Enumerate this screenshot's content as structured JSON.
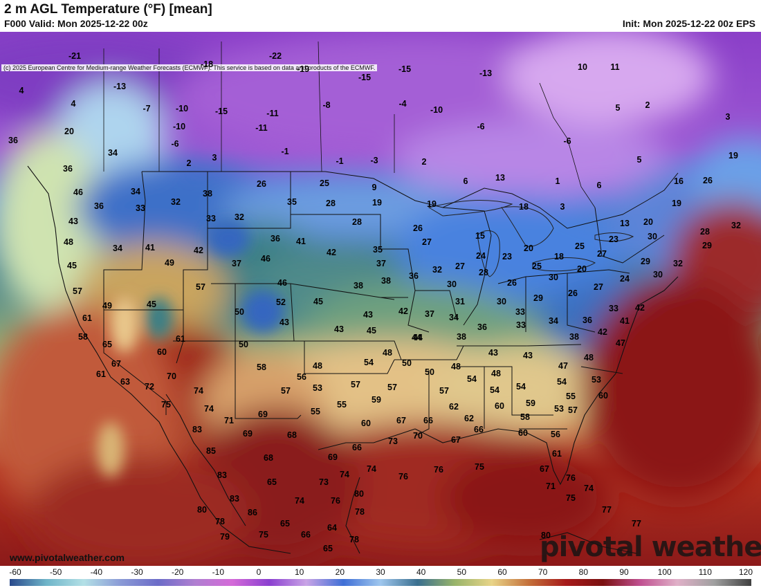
{
  "header": {
    "title": "2 m AGL Temperature (°F) [mean]",
    "valid": "F000 Valid: Mon 2025-12-22 00z",
    "init": "Init: Mon 2025-12-22 00z EPS"
  },
  "copyright": "(c) 2025 European Centre for Medium-range Weather Forecasts (ECMWF). This service is based on data and products of the ECMWF.",
  "footer": {
    "url": "www.pivotalweather.com",
    "brand": "pivotal weather"
  },
  "colorbar": {
    "ticks": [
      "-60",
      "-50",
      "-40",
      "-30",
      "-20",
      "-10",
      "0",
      "10",
      "20",
      "30",
      "40",
      "50",
      "60",
      "70",
      "80",
      "90",
      "100",
      "110",
      "120"
    ],
    "min": -60,
    "max": 120,
    "colors": [
      "#2a4a8c",
      "#6fb5c9",
      "#b3e0e6",
      "#8a9ad6",
      "#6c6cc8",
      "#b07fd1",
      "#d46ad8",
      "#8b3fd0",
      "#c9a4e6",
      "#3f6fd6",
      "#9fc7ee",
      "#3a6f8f",
      "#98b46a",
      "#e8d488",
      "#c4703a",
      "#a61a1a",
      "#7a1010",
      "#c05090",
      "#e0b0c8",
      "#a0a0a0",
      "#404040"
    ]
  },
  "map_values": [
    {
      "v": "-21"
    },
    {
      "v": "-22"
    },
    {
      "v": "-18"
    },
    {
      "v": "-19"
    },
    {
      "v": "-15"
    },
    {
      "v": "-15"
    },
    {
      "v": "-13"
    },
    {
      "v": "-13"
    },
    {
      "v": "10"
    },
    {
      "v": "11"
    },
    {
      "v": "4"
    },
    {
      "v": "4"
    },
    {
      "v": "-7"
    },
    {
      "v": "-10"
    },
    {
      "v": "-15"
    },
    {
      "v": "-11"
    },
    {
      "v": "-8"
    },
    {
      "v": "-4"
    },
    {
      "v": "-10"
    },
    {
      "v": "5"
    },
    {
      "v": "2"
    },
    {
      "v": "3"
    },
    {
      "v": "20"
    },
    {
      "v": "-10"
    },
    {
      "v": "-11"
    },
    {
      "v": "-6"
    },
    {
      "v": "-6"
    },
    {
      "v": "36"
    },
    {
      "v": "-6"
    },
    {
      "v": "34"
    },
    {
      "v": "2"
    },
    {
      "v": "3"
    },
    {
      "v": "-1"
    },
    {
      "v": "-1"
    },
    {
      "v": "-3"
    },
    {
      "v": "2"
    },
    {
      "v": "19"
    },
    {
      "v": "5"
    },
    {
      "v": "36"
    },
    {
      "v": "26"
    },
    {
      "v": "25"
    },
    {
      "v": "9"
    },
    {
      "v": "6"
    },
    {
      "v": "13"
    },
    {
      "v": "1"
    },
    {
      "v": "6"
    },
    {
      "v": "16"
    },
    {
      "v": "26"
    },
    {
      "v": "46"
    },
    {
      "v": "34"
    },
    {
      "v": "38"
    },
    {
      "v": "35"
    },
    {
      "v": "28"
    },
    {
      "v": "19"
    },
    {
      "v": "19"
    },
    {
      "v": "18"
    },
    {
      "v": "3"
    },
    {
      "v": "19"
    },
    {
      "v": "36"
    },
    {
      "v": "33"
    },
    {
      "v": "32"
    },
    {
      "v": "33"
    },
    {
      "v": "32"
    },
    {
      "v": "28"
    },
    {
      "v": "13"
    },
    {
      "v": "20"
    },
    {
      "v": "43"
    },
    {
      "v": "26"
    },
    {
      "v": "28"
    },
    {
      "v": "32"
    },
    {
      "v": "48"
    },
    {
      "v": "34"
    },
    {
      "v": "41"
    },
    {
      "v": "42"
    },
    {
      "v": "36"
    },
    {
      "v": "41"
    },
    {
      "v": "42"
    },
    {
      "v": "35"
    },
    {
      "v": "27"
    },
    {
      "v": "15"
    },
    {
      "v": "20"
    },
    {
      "v": "25"
    },
    {
      "v": "23"
    },
    {
      "v": "30"
    },
    {
      "v": "29"
    },
    {
      "v": "45"
    },
    {
      "v": "49"
    },
    {
      "v": "37"
    },
    {
      "v": "46"
    },
    {
      "v": "37"
    },
    {
      "v": "32"
    },
    {
      "v": "27"
    },
    {
      "v": "24"
    },
    {
      "v": "23"
    },
    {
      "v": "18"
    },
    {
      "v": "27"
    },
    {
      "v": "29"
    },
    {
      "v": "32"
    },
    {
      "v": "57"
    },
    {
      "v": "57"
    },
    {
      "v": "46"
    },
    {
      "v": "38"
    },
    {
      "v": "38"
    },
    {
      "v": "36"
    },
    {
      "v": "30"
    },
    {
      "v": "28"
    },
    {
      "v": "26"
    },
    {
      "v": "25"
    },
    {
      "v": "20"
    },
    {
      "v": "30"
    },
    {
      "v": "24"
    },
    {
      "v": "30"
    },
    {
      "v": "49"
    },
    {
      "v": "45"
    },
    {
      "v": "52"
    },
    {
      "v": "45"
    },
    {
      "v": "31"
    },
    {
      "v": "30"
    },
    {
      "v": "29"
    },
    {
      "v": "26"
    },
    {
      "v": "27"
    },
    {
      "v": "33"
    },
    {
      "v": "61"
    },
    {
      "v": "50"
    },
    {
      "v": "42"
    },
    {
      "v": "43"
    },
    {
      "v": "37"
    },
    {
      "v": "34"
    },
    {
      "v": "33"
    },
    {
      "v": "34"
    },
    {
      "v": "36"
    },
    {
      "v": "42"
    },
    {
      "v": "58"
    },
    {
      "v": "43"
    },
    {
      "v": "43"
    },
    {
      "v": "45"
    },
    {
      "v": "36"
    },
    {
      "v": "33"
    },
    {
      "v": "41"
    },
    {
      "v": "65"
    },
    {
      "v": "61"
    },
    {
      "v": "50"
    },
    {
      "v": "44"
    },
    {
      "v": "38"
    },
    {
      "v": "38"
    },
    {
      "v": "42"
    },
    {
      "v": "47"
    },
    {
      "v": "67"
    },
    {
      "v": "60"
    },
    {
      "v": "48"
    },
    {
      "v": "43"
    },
    {
      "v": "43"
    },
    {
      "v": "48"
    },
    {
      "v": "44"
    },
    {
      "v": "58"
    },
    {
      "v": "50"
    },
    {
      "v": "54"
    },
    {
      "v": "50"
    },
    {
      "v": "48"
    },
    {
      "v": "47"
    },
    {
      "v": "61"
    },
    {
      "v": "70"
    },
    {
      "v": "56"
    },
    {
      "v": "48"
    },
    {
      "v": "48"
    },
    {
      "v": "54"
    },
    {
      "v": "53"
    },
    {
      "v": "63"
    },
    {
      "v": "72"
    },
    {
      "v": "53"
    },
    {
      "v": "57"
    },
    {
      "v": "57"
    },
    {
      "v": "54"
    },
    {
      "v": "54"
    },
    {
      "v": "54"
    },
    {
      "v": "74"
    },
    {
      "v": "57"
    },
    {
      "v": "57"
    },
    {
      "v": "55"
    },
    {
      "v": "62"
    },
    {
      "v": "75"
    },
    {
      "v": "59"
    },
    {
      "v": "55"
    },
    {
      "v": "60"
    },
    {
      "v": "59"
    },
    {
      "v": "60"
    },
    {
      "v": "57"
    },
    {
      "v": "62"
    },
    {
      "v": "53"
    },
    {
      "v": "74"
    },
    {
      "v": "71"
    },
    {
      "v": "69"
    },
    {
      "v": "55"
    },
    {
      "v": "60"
    },
    {
      "v": "67"
    },
    {
      "v": "66"
    },
    {
      "v": "58"
    },
    {
      "v": "83"
    },
    {
      "v": "69"
    },
    {
      "v": "68"
    },
    {
      "v": "73"
    },
    {
      "v": "70"
    },
    {
      "v": "67"
    },
    {
      "v": "66"
    },
    {
      "v": "60"
    },
    {
      "v": "56"
    },
    {
      "v": "85"
    },
    {
      "v": "68"
    },
    {
      "v": "69"
    },
    {
      "v": "66"
    },
    {
      "v": "61"
    },
    {
      "v": "83"
    },
    {
      "v": "74"
    },
    {
      "v": "74"
    },
    {
      "v": "76"
    },
    {
      "v": "76"
    },
    {
      "v": "75"
    },
    {
      "v": "67"
    },
    {
      "v": "76"
    },
    {
      "v": "65"
    },
    {
      "v": "73"
    },
    {
      "v": "71"
    },
    {
      "v": "74"
    },
    {
      "v": "83"
    },
    {
      "v": "74"
    },
    {
      "v": "76"
    },
    {
      "v": "80"
    },
    {
      "v": "75"
    },
    {
      "v": "80"
    },
    {
      "v": "86"
    },
    {
      "v": "78"
    },
    {
      "v": "78"
    },
    {
      "v": "77"
    },
    {
      "v": "77"
    },
    {
      "v": "79"
    },
    {
      "v": "75"
    },
    {
      "v": "65"
    },
    {
      "v": "66"
    },
    {
      "v": "64"
    },
    {
      "v": "78"
    },
    {
      "v": "80"
    },
    {
      "v": "65"
    }
  ]
}
